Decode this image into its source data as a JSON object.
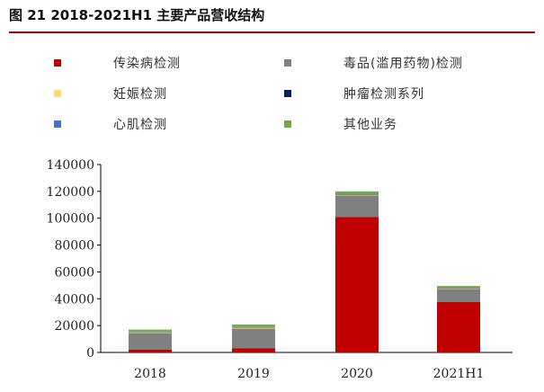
{
  "figure": {
    "title": "图 21 2018-2021H1 主要产品营收结构"
  },
  "chart_data": {
    "type": "bar",
    "stacked": true,
    "title": "图 21 2018-2021H1 主要产品营收结构",
    "xlabel": "",
    "ylabel": "",
    "categories": [
      "2018",
      "2019",
      "2020",
      "2021H1"
    ],
    "ylim": [
      0,
      140000
    ],
    "yticks": [
      0,
      20000,
      40000,
      60000,
      80000,
      100000,
      120000,
      140000
    ],
    "yticklabels": [
      "0",
      "20000",
      "40000",
      "60000",
      "80000",
      "100000",
      "120000",
      "140000"
    ],
    "grid": false,
    "legend_position": "top",
    "series": [
      {
        "name": "传染病检测",
        "color": "#c00000",
        "values": [
          2000,
          3000,
          101000,
          37500
        ]
      },
      {
        "name": "毒品(滥用药物)检测",
        "color": "#808080",
        "values": [
          12500,
          14800,
          16000,
          9800
        ]
      },
      {
        "name": "妊娠检测",
        "color": "#ffd966",
        "values": [
          500,
          700,
          600,
          400
        ]
      },
      {
        "name": "肿瘤检测系列",
        "color": "#002060",
        "values": [
          200,
          200,
          300,
          200
        ]
      },
      {
        "name": "心肌检测",
        "color": "#4472c4",
        "values": [
          300,
          300,
          300,
          200
        ]
      },
      {
        "name": "其他业务",
        "color": "#70ad47",
        "values": [
          1500,
          1800,
          1800,
          1400
        ]
      }
    ]
  }
}
